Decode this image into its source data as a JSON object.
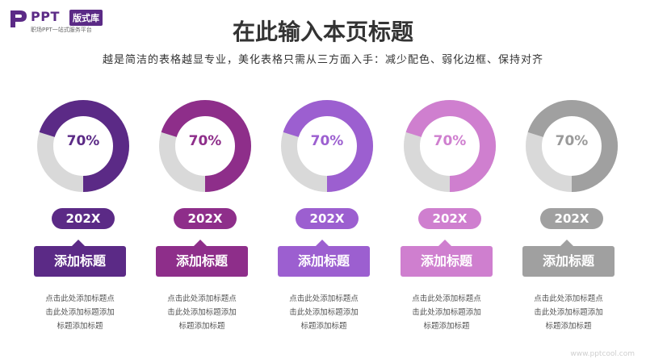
{
  "logo": {
    "brand": "PPT",
    "badge": "版式库",
    "tagline": "职场PPT一站式服务平台"
  },
  "title": "在此输入本页标题",
  "subtitle": "越是简洁的表格越显专业，美化表格只需从三方面入手：减少配色、弱化边框、保持对齐",
  "cards": [
    {
      "percent_label": "70%",
      "percent": 0.7,
      "year": "202X",
      "heading": "添加标题",
      "desc": [
        "点击此处添加标题点",
        "击此处添加标题添加",
        "标题添加标题"
      ],
      "color": "#5b2a86",
      "text_color": "#5b2a86"
    },
    {
      "percent_label": "70%",
      "percent": 0.7,
      "year": "202X",
      "heading": "添加标题",
      "desc": [
        "点击此处添加标题点",
        "击此处添加标题添加",
        "标题添加标题"
      ],
      "color": "#8e2e8a",
      "text_color": "#8e2e8a"
    },
    {
      "percent_label": "70%",
      "percent": 0.7,
      "year": "202X",
      "heading": "添加标题",
      "desc": [
        "点击此处添加标题点",
        "击此处添加标题添加",
        "标题添加标题"
      ],
      "color": "#9c5fd0",
      "text_color": "#9c5fd0"
    },
    {
      "percent_label": "70%",
      "percent": 0.7,
      "year": "202X",
      "heading": "添加标题",
      "desc": [
        "点击此处添加标题点",
        "击此处添加标题添加",
        "标题添加标题"
      ],
      "color": "#cf7fcf",
      "text_color": "#cf7fcf"
    },
    {
      "percent_label": "70%",
      "percent": 0.7,
      "year": "202X",
      "heading": "添加标题",
      "desc": [
        "点击此处添加标题点",
        "击此处添加标题添加",
        "标题添加标题"
      ],
      "color": "#a0a0a0",
      "text_color": "#9a9a9a"
    }
  ],
  "track_color": "#d9d9d9",
  "watermark": "www.pptcool.com"
}
